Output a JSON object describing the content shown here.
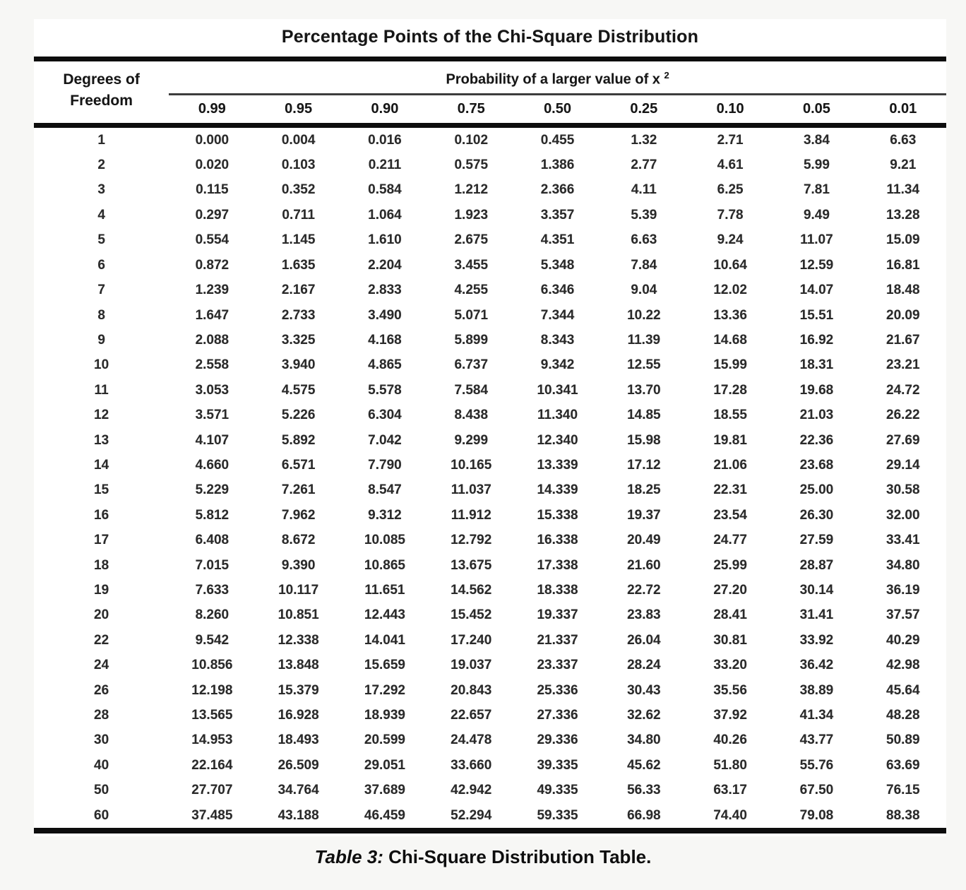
{
  "page": {
    "title": "Percentage Points of the Chi-Square Distribution",
    "caption_prefix": "Table 3:",
    "caption_text": " Chi-Square Distribution Table."
  },
  "table": {
    "df_header_line1": "Degrees of",
    "df_header_line2": "Freedom",
    "prob_header": "Probability of a larger value of x",
    "prob_header_sup": "2",
    "columns": [
      "0.99",
      "0.95",
      "0.90",
      "0.75",
      "0.50",
      "0.25",
      "0.10",
      "0.05",
      "0.01"
    ],
    "rows": [
      {
        "df": "1",
        "values": [
          "0.000",
          "0.004",
          "0.016",
          "0.102",
          "0.455",
          "1.32",
          "2.71",
          "3.84",
          "6.63"
        ]
      },
      {
        "df": "2",
        "values": [
          "0.020",
          "0.103",
          "0.211",
          "0.575",
          "1.386",
          "2.77",
          "4.61",
          "5.99",
          "9.21"
        ]
      },
      {
        "df": "3",
        "values": [
          "0.115",
          "0.352",
          "0.584",
          "1.212",
          "2.366",
          "4.11",
          "6.25",
          "7.81",
          "11.34"
        ]
      },
      {
        "df": "4",
        "values": [
          "0.297",
          "0.711",
          "1.064",
          "1.923",
          "3.357",
          "5.39",
          "7.78",
          "9.49",
          "13.28"
        ]
      },
      {
        "df": "5",
        "values": [
          "0.554",
          "1.145",
          "1.610",
          "2.675",
          "4.351",
          "6.63",
          "9.24",
          "11.07",
          "15.09"
        ]
      },
      {
        "df": "6",
        "values": [
          "0.872",
          "1.635",
          "2.204",
          "3.455",
          "5.348",
          "7.84",
          "10.64",
          "12.59",
          "16.81"
        ]
      },
      {
        "df": "7",
        "values": [
          "1.239",
          "2.167",
          "2.833",
          "4.255",
          "6.346",
          "9.04",
          "12.02",
          "14.07",
          "18.48"
        ]
      },
      {
        "df": "8",
        "values": [
          "1.647",
          "2.733",
          "3.490",
          "5.071",
          "7.344",
          "10.22",
          "13.36",
          "15.51",
          "20.09"
        ]
      },
      {
        "df": "9",
        "values": [
          "2.088",
          "3.325",
          "4.168",
          "5.899",
          "8.343",
          "11.39",
          "14.68",
          "16.92",
          "21.67"
        ]
      },
      {
        "df": "10",
        "values": [
          "2.558",
          "3.940",
          "4.865",
          "6.737",
          "9.342",
          "12.55",
          "15.99",
          "18.31",
          "23.21"
        ]
      },
      {
        "df": "11",
        "values": [
          "3.053",
          "4.575",
          "5.578",
          "7.584",
          "10.341",
          "13.70",
          "17.28",
          "19.68",
          "24.72"
        ]
      },
      {
        "df": "12",
        "values": [
          "3.571",
          "5.226",
          "6.304",
          "8.438",
          "11.340",
          "14.85",
          "18.55",
          "21.03",
          "26.22"
        ]
      },
      {
        "df": "13",
        "values": [
          "4.107",
          "5.892",
          "7.042",
          "9.299",
          "12.340",
          "15.98",
          "19.81",
          "22.36",
          "27.69"
        ]
      },
      {
        "df": "14",
        "values": [
          "4.660",
          "6.571",
          "7.790",
          "10.165",
          "13.339",
          "17.12",
          "21.06",
          "23.68",
          "29.14"
        ]
      },
      {
        "df": "15",
        "values": [
          "5.229",
          "7.261",
          "8.547",
          "11.037",
          "14.339",
          "18.25",
          "22.31",
          "25.00",
          "30.58"
        ]
      },
      {
        "df": "16",
        "values": [
          "5.812",
          "7.962",
          "9.312",
          "11.912",
          "15.338",
          "19.37",
          "23.54",
          "26.30",
          "32.00"
        ]
      },
      {
        "df": "17",
        "values": [
          "6.408",
          "8.672",
          "10.085",
          "12.792",
          "16.338",
          "20.49",
          "24.77",
          "27.59",
          "33.41"
        ]
      },
      {
        "df": "18",
        "values": [
          "7.015",
          "9.390",
          "10.865",
          "13.675",
          "17.338",
          "21.60",
          "25.99",
          "28.87",
          "34.80"
        ]
      },
      {
        "df": "19",
        "values": [
          "7.633",
          "10.117",
          "11.651",
          "14.562",
          "18.338",
          "22.72",
          "27.20",
          "30.14",
          "36.19"
        ]
      },
      {
        "df": "20",
        "values": [
          "8.260",
          "10.851",
          "12.443",
          "15.452",
          "19.337",
          "23.83",
          "28.41",
          "31.41",
          "37.57"
        ]
      },
      {
        "df": "22",
        "values": [
          "9.542",
          "12.338",
          "14.041",
          "17.240",
          "21.337",
          "26.04",
          "30.81",
          "33.92",
          "40.29"
        ]
      },
      {
        "df": "24",
        "values": [
          "10.856",
          "13.848",
          "15.659",
          "19.037",
          "23.337",
          "28.24",
          "33.20",
          "36.42",
          "42.98"
        ]
      },
      {
        "df": "26",
        "values": [
          "12.198",
          "15.379",
          "17.292",
          "20.843",
          "25.336",
          "30.43",
          "35.56",
          "38.89",
          "45.64"
        ]
      },
      {
        "df": "28",
        "values": [
          "13.565",
          "16.928",
          "18.939",
          "22.657",
          "27.336",
          "32.62",
          "37.92",
          "41.34",
          "48.28"
        ]
      },
      {
        "df": "30",
        "values": [
          "14.953",
          "18.493",
          "20.599",
          "24.478",
          "29.336",
          "34.80",
          "40.26",
          "43.77",
          "50.89"
        ]
      },
      {
        "df": "40",
        "values": [
          "22.164",
          "26.509",
          "29.051",
          "33.660",
          "39.335",
          "45.62",
          "51.80",
          "55.76",
          "63.69"
        ]
      },
      {
        "df": "50",
        "values": [
          "27.707",
          "34.764",
          "37.689",
          "42.942",
          "49.335",
          "56.33",
          "63.17",
          "67.50",
          "76.15"
        ]
      },
      {
        "df": "60",
        "values": [
          "37.485",
          "43.188",
          "46.459",
          "52.294",
          "59.335",
          "66.98",
          "74.40",
          "79.08",
          "88.38"
        ]
      }
    ]
  },
  "colors": {
    "background": "#f7f7f5",
    "panel": "#ffffff",
    "rule": "#0d0d0d",
    "text": "#1c1c1c"
  }
}
